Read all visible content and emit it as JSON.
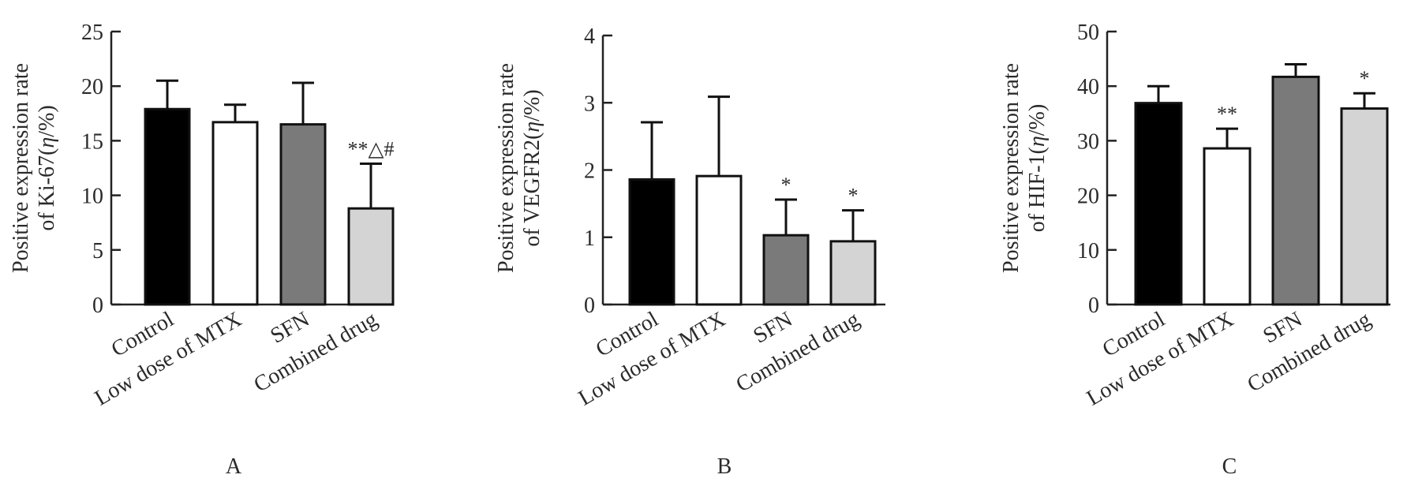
{
  "figure": {
    "panels": [
      "A",
      "B",
      "C"
    ]
  },
  "chart_data": [
    {
      "type": "bar",
      "panel_label": "A",
      "ylabel_line1": "Positive expression rate",
      "ylabel_line2_prefix": "of Ki-67(",
      "ylabel_line2_symbol": "η",
      "ylabel_line2_suffix": "/%)",
      "categories": [
        "Control",
        "Low dose of MTX",
        "SFN",
        "Combined drug"
      ],
      "values": [
        17.9,
        16.7,
        16.5,
        8.8
      ],
      "errors": [
        2.6,
        1.6,
        3.8,
        4.1
      ],
      "significance": [
        "",
        "",
        "",
        "**△#"
      ],
      "bar_colors": [
        "#000000",
        "#ffffff",
        "#7a7a7a",
        "#d4d4d4"
      ],
      "ylim": [
        0,
        25
      ],
      "yticks": [
        0,
        5,
        10,
        15,
        20,
        25
      ]
    },
    {
      "type": "bar",
      "panel_label": "B",
      "ylabel_line1": "Positive expression rate",
      "ylabel_line2_prefix": "of VEGFR2(",
      "ylabel_line2_symbol": "η",
      "ylabel_line2_suffix": "/%)",
      "categories": [
        "Control",
        "Low dose of MTX",
        "SFN",
        "Combined drug"
      ],
      "values": [
        1.86,
        1.91,
        1.03,
        0.94
      ],
      "errors": [
        0.85,
        1.18,
        0.53,
        0.46
      ],
      "significance": [
        "",
        "",
        "*",
        "*"
      ],
      "bar_colors": [
        "#000000",
        "#ffffff",
        "#7a7a7a",
        "#d4d4d4"
      ],
      "ylim": [
        0,
        4
      ],
      "yticks": [
        0,
        1,
        2,
        3,
        4
      ]
    },
    {
      "type": "bar",
      "panel_label": "C",
      "ylabel_line1": "Positive expression rate",
      "ylabel_line2_prefix": "of HIF-1(",
      "ylabel_line2_symbol": "η",
      "ylabel_line2_suffix": "/%)",
      "categories": [
        "Control",
        "Low dose of MTX",
        "SFN",
        "Combined drug"
      ],
      "values": [
        36.9,
        28.6,
        41.7,
        35.9
      ],
      "errors": [
        3.1,
        3.6,
        2.3,
        2.8
      ],
      "significance": [
        "",
        "**",
        "",
        "*"
      ],
      "bar_colors": [
        "#000000",
        "#ffffff",
        "#7a7a7a",
        "#d4d4d4"
      ],
      "ylim": [
        0,
        50
      ],
      "yticks": [
        0,
        10,
        20,
        30,
        40,
        50
      ]
    }
  ]
}
